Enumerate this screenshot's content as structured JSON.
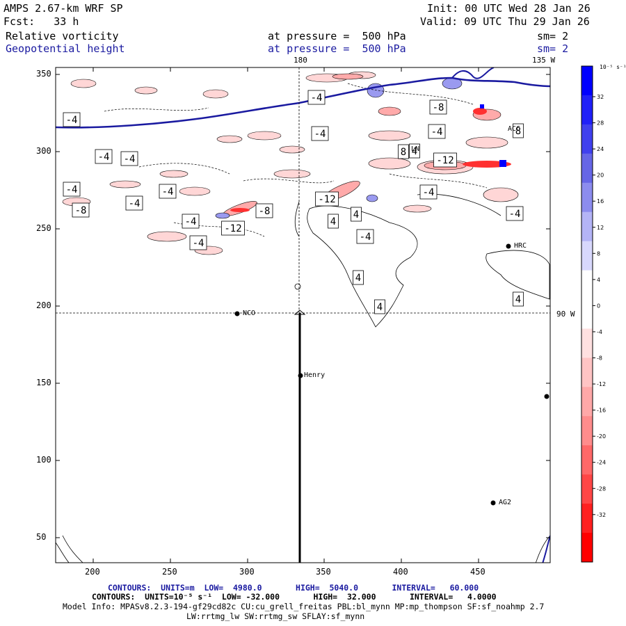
{
  "header": {
    "model": "AMPS 2.67-km WRF SP",
    "fcst": "Fcst:   33 h",
    "init": "Init: 00 UTC Wed 28 Jan 26",
    "valid": "Valid: 09 UTC Thu 29 Jan 26",
    "field1_name": "Relative vorticity",
    "field1_level": "at pressure =  500 hPa",
    "field1_sm": "sm= 2",
    "field2_name": "Geopotential height",
    "field2_level": "at pressure =  500 hPa",
    "field2_sm": "sm= 2"
  },
  "map": {
    "meridian_top_label": "180",
    "meridian_right_label": "135 W",
    "parallel_label": "90 W",
    "x_ticks": [
      "200",
      "250",
      "300",
      "350",
      "400",
      "450"
    ],
    "y_ticks": [
      "350",
      "300",
      "250",
      "200",
      "150",
      "100",
      "50"
    ],
    "stations": [
      {
        "name": "NCO"
      },
      {
        "name": "Henry"
      },
      {
        "name": "HRC"
      },
      {
        "name": "AG2"
      },
      {
        "name": "LN"
      },
      {
        "name": "ACC"
      }
    ],
    "contour_labels": [
      "-4",
      "-4",
      "-4",
      "-4",
      "-8",
      "-4",
      "-8",
      "-4",
      "-4",
      "-4",
      "-4",
      "-8",
      "-4",
      "-12",
      "-12",
      "-4",
      "-4",
      "-4",
      "-12",
      "-4",
      "4",
      "4",
      "4",
      "4",
      "4",
      "8",
      "8",
      "4"
    ]
  },
  "colorbar": {
    "unit_label": "10⁻⁵ s⁻¹",
    "tick_labels": [
      "32",
      "28",
      "24",
      "20",
      "16",
      "12",
      "8",
      "4",
      "0",
      "-4",
      "-8",
      "-12",
      "-16",
      "-20",
      "-24",
      "-28",
      "-32"
    ],
    "colors": [
      "#0000ff",
      "#2020f8",
      "#4040ee",
      "#6666e6",
      "#8c8cee",
      "#b4b4f6",
      "#d8d8fc",
      "#ffffff",
      "#ffffff",
      "#ffe0e0",
      "#ffc4c4",
      "#ffa8a8",
      "#ff8c8c",
      "#ff6868",
      "#ff4646",
      "#ff2020",
      "#ff0000"
    ]
  },
  "footer": {
    "line1": "CONTOURS:  UNITS=m  LOW=  4980.0       HIGH=  5040.0       INTERVAL=   60.000",
    "line2": "CONTOURS:  UNITS=10⁻⁵ s⁻¹  LOW= -32.000       HIGH=  32.000       INTERVAL=   4.0000",
    "line3": "Model Info: MPASv8.2.3-194-gf29cd82c CU:cu_grell_freitas PBL:bl_mynn MP:mp_thompson SF:sf_noahmp 2.7",
    "line4": "LW:rrtmg_lw SW:rrtmg_sw SFLAY:sf_mynn"
  }
}
